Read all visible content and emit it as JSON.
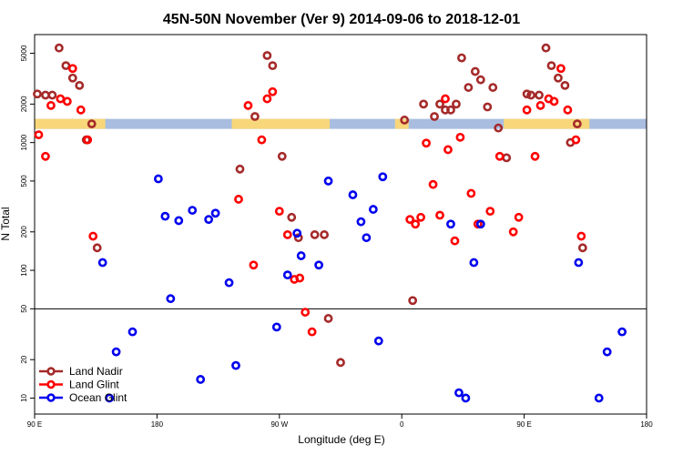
{
  "chart_data": {
    "type": "scatter",
    "title": "45N-50N November (Ver 9)   2014-09-06 to 2018-12-01",
    "xlabel": "Longitude (deg E)",
    "ylabel": "N Total",
    "x_scale": "longitude",
    "y_scale": "log",
    "xlim": [
      90,
      540
    ],
    "ylim": [
      7.5,
      7000
    ],
    "x_ticks": [
      {
        "value": 90,
        "label": "90 E"
      },
      {
        "value": 180,
        "label": "180"
      },
      {
        "value": 270,
        "label": "90 W"
      },
      {
        "value": 360,
        "label": "0"
      },
      {
        "value": 450,
        "label": "90 E"
      },
      {
        "value": 540,
        "label": "180"
      }
    ],
    "y_ticks": [
      10,
      20,
      50,
      100,
      200,
      500,
      1000,
      2000,
      5000
    ],
    "reference_line": 50,
    "land_mask_band": {
      "center_y": 1400,
      "land_color": "#f8d77a",
      "ocean_color": "#a8bddf"
    },
    "land_mask_land_ranges": [
      [
        90,
        142
      ],
      [
        235,
        305
      ],
      [
        305,
        307
      ],
      [
        355,
        365
      ],
      [
        435,
        498
      ]
    ],
    "series": [
      {
        "name": "Land Nadir",
        "color": "#a52a2a",
        "points": [
          [
            92,
            2400
          ],
          [
            98,
            2350
          ],
          [
            103,
            2350
          ],
          [
            108,
            5500
          ],
          [
            113,
            4000
          ],
          [
            118,
            3200
          ],
          [
            123,
            2800
          ],
          [
            128,
            1050
          ],
          [
            132,
            1400
          ],
          [
            136,
            150
          ],
          [
            241,
            620
          ],
          [
            252,
            1600
          ],
          [
            261,
            4800
          ],
          [
            265,
            4000
          ],
          [
            272,
            780
          ],
          [
            279,
            260
          ],
          [
            284,
            180
          ],
          [
            296,
            190
          ],
          [
            303,
            190
          ],
          [
            306,
            42
          ],
          [
            315,
            19
          ],
          [
            362,
            1500
          ],
          [
            368,
            58
          ],
          [
            376,
            2000
          ],
          [
            384,
            1600
          ],
          [
            388,
            2000
          ],
          [
            392,
            1800
          ],
          [
            396,
            1800
          ],
          [
            400,
            2000
          ],
          [
            404,
            4600
          ],
          [
            409,
            2700
          ],
          [
            414,
            3600
          ],
          [
            418,
            3100
          ],
          [
            423,
            1900
          ],
          [
            427,
            2700
          ],
          [
            431,
            1300
          ],
          [
            437,
            760
          ],
          [
            452,
            2400
          ],
          [
            455,
            2350
          ],
          [
            461,
            2350
          ],
          [
            466,
            5500
          ],
          [
            470,
            4000
          ],
          [
            475,
            3200
          ],
          [
            480,
            2800
          ],
          [
            484,
            1000
          ],
          [
            489,
            1400
          ],
          [
            493,
            150
          ]
        ]
      },
      {
        "name": "Land Glint",
        "color": "#ff0000",
        "points": [
          [
            93,
            1150
          ],
          [
            98,
            780
          ],
          [
            102,
            1950
          ],
          [
            109,
            2200
          ],
          [
            114,
            2100
          ],
          [
            118,
            3800
          ],
          [
            124,
            1800
          ],
          [
            129,
            1050
          ],
          [
            133,
            185
          ],
          [
            240,
            360
          ],
          [
            247,
            1950
          ],
          [
            251,
            110
          ],
          [
            257,
            1050
          ],
          [
            261,
            2200
          ],
          [
            265,
            2500
          ],
          [
            270,
            290
          ],
          [
            276,
            190
          ],
          [
            281,
            85
          ],
          [
            285,
            87
          ],
          [
            289,
            47
          ],
          [
            294,
            33
          ],
          [
            366,
            250
          ],
          [
            370,
            230
          ],
          [
            374,
            260
          ],
          [
            378,
            990
          ],
          [
            383,
            470
          ],
          [
            388,
            270
          ],
          [
            392,
            2200
          ],
          [
            394,
            880
          ],
          [
            399,
            170
          ],
          [
            403,
            1100
          ],
          [
            411,
            400
          ],
          [
            416,
            230
          ],
          [
            425,
            290
          ],
          [
            432,
            780
          ],
          [
            442,
            200
          ],
          [
            446,
            260
          ],
          [
            452,
            1800
          ],
          [
            458,
            780
          ],
          [
            462,
            1950
          ],
          [
            468,
            2200
          ],
          [
            472,
            2100
          ],
          [
            477,
            3800
          ],
          [
            482,
            1800
          ],
          [
            488,
            1050
          ],
          [
            492,
            185
          ]
        ]
      },
      {
        "name": "Ocean Glint",
        "color": "#0000ee",
        "points": [
          [
            140,
            115
          ],
          [
            145,
            10
          ],
          [
            150,
            23
          ],
          [
            162,
            33
          ],
          [
            181,
            520
          ],
          [
            186,
            265
          ],
          [
            190,
            60
          ],
          [
            196,
            245
          ],
          [
            206,
            295
          ],
          [
            212,
            14
          ],
          [
            218,
            250
          ],
          [
            223,
            280
          ],
          [
            233,
            80
          ],
          [
            238,
            18
          ],
          [
            268,
            36
          ],
          [
            276,
            92
          ],
          [
            283,
            195
          ],
          [
            286,
            130
          ],
          [
            299,
            110
          ],
          [
            306,
            500
          ],
          [
            324,
            390
          ],
          [
            330,
            240
          ],
          [
            334,
            180
          ],
          [
            339,
            300
          ],
          [
            343,
            28
          ],
          [
            346,
            540
          ],
          [
            396,
            230
          ],
          [
            402,
            11
          ],
          [
            407,
            10
          ],
          [
            413,
            115
          ],
          [
            418,
            230
          ],
          [
            490,
            115
          ],
          [
            505,
            10
          ],
          [
            511,
            23
          ],
          [
            522,
            33
          ]
        ]
      }
    ],
    "legend": {
      "position": "bottom-left",
      "entries": [
        "Land Nadir",
        "Land Glint",
        "Ocean Glint"
      ]
    }
  }
}
